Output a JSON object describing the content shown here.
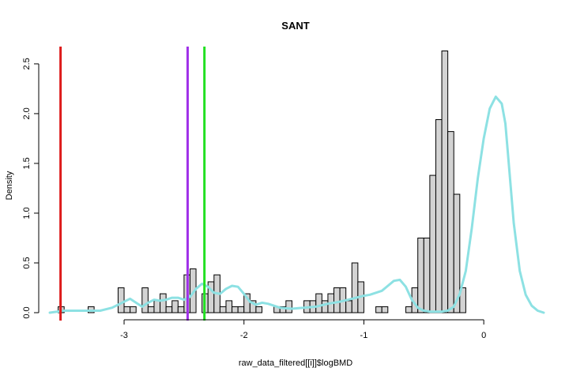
{
  "chart_data": {
    "type": "bar",
    "subtype": "histogram",
    "title": "SANT",
    "xlabel": "raw_data_filtered[[i]]$logBMD",
    "ylabel": "Density",
    "xlim": [
      -3.6,
      0.5
    ],
    "ylim": [
      0,
      2.65
    ],
    "x_ticks": [
      -3,
      -2,
      -1,
      0
    ],
    "y_ticks": [
      0.0,
      0.5,
      1.0,
      1.5,
      2.0,
      2.5
    ],
    "x_tick_labels": [
      "-3",
      "-2",
      "-1",
      "0"
    ],
    "y_tick_labels": [
      "0.0",
      "0.5",
      "1.0",
      "1.5",
      "2.0",
      "2.5"
    ],
    "bin_width": 0.05,
    "bin_start": -3.55,
    "density": [
      0.06,
      0,
      0,
      0,
      0,
      0.06,
      0,
      0,
      0,
      0,
      0.25,
      0.06,
      0.06,
      0,
      0.25,
      0.06,
      0.12,
      0.19,
      0.06,
      0.12,
      0.06,
      0.38,
      0.44,
      0,
      0.19,
      0.31,
      0.38,
      0.06,
      0.12,
      0.06,
      0.06,
      0.19,
      0.12,
      0.06,
      0,
      0,
      0.06,
      0.06,
      0.12,
      0,
      0,
      0.12,
      0.12,
      0.19,
      0.12,
      0.19,
      0.25,
      0.25,
      0.12,
      0.5,
      0.31,
      0,
      0,
      0.06,
      0.06,
      0,
      0,
      0,
      0.06,
      0.25,
      0.75,
      0.75,
      1.38,
      1.94,
      2.63,
      1.82,
      1.19,
      0.25
    ],
    "density_curve": {
      "color": "#8de1e3",
      "x": [
        -3.62,
        -3.5,
        -3.4,
        -3.3,
        -3.2,
        -3.1,
        -3.0,
        -2.95,
        -2.9,
        -2.85,
        -2.8,
        -2.75,
        -2.7,
        -2.65,
        -2.6,
        -2.55,
        -2.5,
        -2.45,
        -2.4,
        -2.35,
        -2.3,
        -2.25,
        -2.2,
        -2.15,
        -2.1,
        -2.05,
        -2.0,
        -1.95,
        -1.9,
        -1.85,
        -1.8,
        -1.75,
        -1.7,
        -1.6,
        -1.5,
        -1.4,
        -1.3,
        -1.2,
        -1.1,
        -1.0,
        -0.95,
        -0.9,
        -0.85,
        -0.8,
        -0.75,
        -0.7,
        -0.65,
        -0.6,
        -0.55,
        -0.5,
        -0.45,
        -0.4,
        -0.35,
        -0.3,
        -0.25,
        -0.2,
        -0.15,
        -0.1,
        -0.05,
        0.0,
        0.05,
        0.1,
        0.15,
        0.18,
        0.2,
        0.25,
        0.3,
        0.35,
        0.4,
        0.45,
        0.5
      ],
      "y": [
        0.0,
        0.02,
        0.02,
        0.02,
        0.02,
        0.05,
        0.11,
        0.14,
        0.1,
        0.06,
        0.1,
        0.13,
        0.12,
        0.13,
        0.15,
        0.15,
        0.13,
        0.16,
        0.24,
        0.29,
        0.26,
        0.2,
        0.19,
        0.24,
        0.27,
        0.26,
        0.19,
        0.11,
        0.08,
        0.1,
        0.09,
        0.07,
        0.05,
        0.04,
        0.05,
        0.06,
        0.09,
        0.11,
        0.14,
        0.17,
        0.18,
        0.2,
        0.22,
        0.27,
        0.32,
        0.33,
        0.26,
        0.13,
        0.05,
        0.02,
        0.01,
        0.01,
        0.01,
        0.02,
        0.06,
        0.19,
        0.42,
        0.85,
        1.35,
        1.75,
        2.05,
        2.17,
        2.1,
        1.9,
        1.62,
        0.9,
        0.42,
        0.18,
        0.07,
        0.02,
        0.0
      ]
    },
    "vertical_lines": [
      {
        "x": -3.53,
        "color": "#dd1a1a"
      },
      {
        "x": -2.47,
        "color": "#a030e8"
      },
      {
        "x": -2.33,
        "color": "#22e022"
      }
    ],
    "bar_fill": "#d3d3d3",
    "bar_stroke": "#000000",
    "grid": false,
    "legend": "none"
  }
}
